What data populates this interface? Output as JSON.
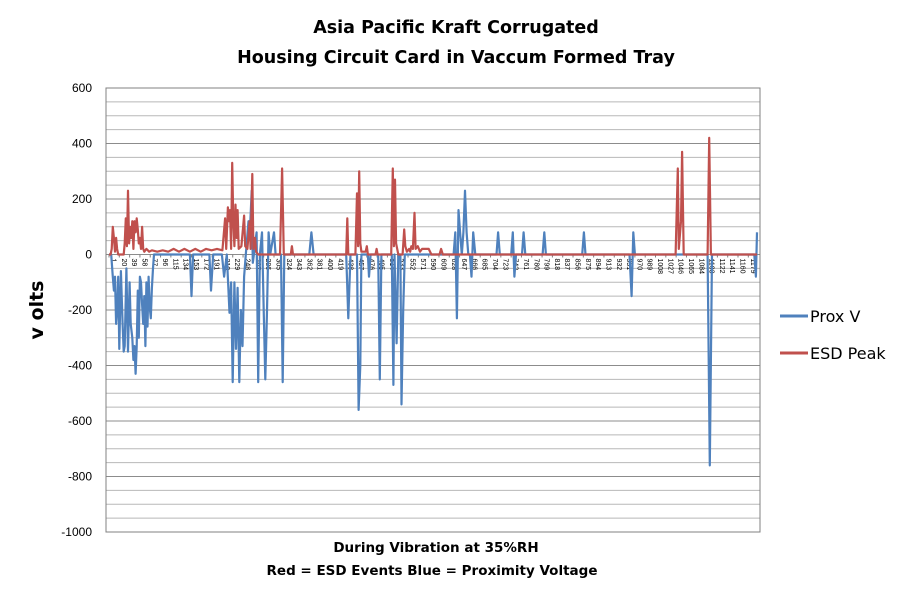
{
  "chart_data": {
    "type": "line",
    "title_lines": [
      "Asia Pacific Kraft Corrugated",
      "Housing Circuit Card in Vaccum Formed Tray"
    ],
    "ylabel": "v olts",
    "xlabel_lines": [
      "During Vibration at 35%RH",
      "Red = ESD Events   Blue = Proximity Voltage"
    ],
    "ylim": [
      -1000,
      600
    ],
    "yticks": [
      600,
      400,
      200,
      0,
      -200,
      -400,
      -600,
      -800,
      -1000
    ],
    "minor_grid_step": 50,
    "grid": true,
    "legend_position": "right",
    "x_count": 1195,
    "x_tick_labels": [
      "1",
      "20",
      "39",
      "58",
      "77",
      "96",
      "115",
      "134",
      "153",
      "172",
      "191",
      "210",
      "229",
      "248",
      "267",
      "286",
      "305",
      "324",
      "343",
      "362",
      "381",
      "400",
      "419",
      "438",
      "457",
      "476",
      "495",
      "514",
      "533",
      "552",
      "571",
      "590",
      "609",
      "628",
      "647",
      "666",
      "685",
      "704",
      "723",
      "742",
      "761",
      "780",
      "799",
      "818",
      "837",
      "856",
      "875",
      "894",
      "913",
      "932",
      "951",
      "970",
      "989",
      "1008",
      "1027",
      "1046",
      "1065",
      "1084",
      "1103",
      "1122",
      "1141",
      "1160",
      "1179"
    ],
    "series": [
      {
        "name": "Prox V",
        "color": "#4f81bd",
        "points": [
          [
            1,
            0
          ],
          [
            5,
            0
          ],
          [
            8,
            -80
          ],
          [
            10,
            -130
          ],
          [
            12,
            -80
          ],
          [
            14,
            -250
          ],
          [
            16,
            -200
          ],
          [
            18,
            -80
          ],
          [
            20,
            -340
          ],
          [
            23,
            -60
          ],
          [
            26,
            -250
          ],
          [
            28,
            -350
          ],
          [
            30,
            -330
          ],
          [
            33,
            -50
          ],
          [
            36,
            -350
          ],
          [
            39,
            -100
          ],
          [
            41,
            -250
          ],
          [
            44,
            -300
          ],
          [
            46,
            -380
          ],
          [
            48,
            -330
          ],
          [
            50,
            -430
          ],
          [
            52,
            -330
          ],
          [
            54,
            -130
          ],
          [
            56,
            -300
          ],
          [
            58,
            -80
          ],
          [
            60,
            -100
          ],
          [
            62,
            -180
          ],
          [
            64,
            -250
          ],
          [
            66,
            -150
          ],
          [
            68,
            -330
          ],
          [
            70,
            -100
          ],
          [
            72,
            -260
          ],
          [
            74,
            -80
          ],
          [
            76,
            -190
          ],
          [
            78,
            -230
          ],
          [
            80,
            -120
          ],
          [
            82,
            -50
          ],
          [
            84,
            0
          ],
          [
            150,
            0
          ],
          [
            153,
            -150
          ],
          [
            156,
            0
          ],
          [
            186,
            0
          ],
          [
            189,
            -130
          ],
          [
            193,
            0
          ],
          [
            209,
            0
          ],
          [
            213,
            -80
          ],
          [
            218,
            0
          ],
          [
            223,
            -210
          ],
          [
            226,
            -100
          ],
          [
            229,
            -460
          ],
          [
            232,
            -100
          ],
          [
            235,
            -340
          ],
          [
            238,
            -120
          ],
          [
            241,
            -460
          ],
          [
            244,
            -200
          ],
          [
            247,
            -330
          ],
          [
            250,
            -80
          ],
          [
            253,
            0
          ],
          [
            258,
            120
          ],
          [
            260,
            60
          ],
          [
            264,
            230
          ],
          [
            266,
            -30
          ],
          [
            268,
            0
          ],
          [
            273,
            80
          ],
          [
            276,
            -460
          ],
          [
            279,
            0
          ],
          [
            283,
            80
          ],
          [
            286,
            -200
          ],
          [
            289,
            -450
          ],
          [
            292,
            -220
          ],
          [
            295,
            80
          ],
          [
            298,
            0
          ],
          [
            305,
            80
          ],
          [
            308,
            0
          ],
          [
            318,
            0
          ],
          [
            321,
            -460
          ],
          [
            324,
            0
          ],
          [
            370,
            0
          ],
          [
            374,
            80
          ],
          [
            378,
            0
          ],
          [
            438,
            0
          ],
          [
            442,
            -230
          ],
          [
            446,
            0
          ],
          [
            458,
            0
          ],
          [
            461,
            -560
          ],
          [
            464,
            -400
          ],
          [
            466,
            0
          ],
          [
            478,
            0
          ],
          [
            480,
            -80
          ],
          [
            483,
            0
          ],
          [
            497,
            0
          ],
          [
            500,
            -450
          ],
          [
            503,
            0
          ],
          [
            522,
            0
          ],
          [
            525,
            -470
          ],
          [
            527,
            0
          ],
          [
            531,
            -320
          ],
          [
            534,
            0
          ],
          [
            538,
            0
          ],
          [
            540,
            -540
          ],
          [
            543,
            -200
          ],
          [
            546,
            0
          ],
          [
            636,
            0
          ],
          [
            639,
            80
          ],
          [
            642,
            -230
          ],
          [
            645,
            160
          ],
          [
            648,
            80
          ],
          [
            651,
            0
          ],
          [
            654,
            80
          ],
          [
            657,
            230
          ],
          [
            660,
            80
          ],
          [
            663,
            0
          ],
          [
            666,
            0
          ],
          [
            669,
            -80
          ],
          [
            672,
            80
          ],
          [
            676,
            0
          ],
          [
            715,
            0
          ],
          [
            718,
            80
          ],
          [
            721,
            0
          ],
          [
            742,
            0
          ],
          [
            745,
            80
          ],
          [
            748,
            -80
          ],
          [
            751,
            0
          ],
          [
            762,
            0
          ],
          [
            765,
            80
          ],
          [
            768,
            0
          ],
          [
            800,
            0
          ],
          [
            803,
            80
          ],
          [
            806,
            0
          ],
          [
            873,
            0
          ],
          [
            876,
            80
          ],
          [
            879,
            0
          ],
          [
            960,
            0
          ],
          [
            964,
            -150
          ],
          [
            967,
            80
          ],
          [
            970,
            0
          ],
          [
            1104,
            0
          ],
          [
            1108,
            -760
          ],
          [
            1112,
            0
          ],
          [
            1190,
            0
          ],
          [
            1193,
            -80
          ],
          [
            1195,
            80
          ]
        ]
      },
      {
        "name": "ESD Peak",
        "color": "#c0504d",
        "points": [
          [
            1,
            0
          ],
          [
            4,
            0
          ],
          [
            6,
            20
          ],
          [
            8,
            100
          ],
          [
            10,
            60
          ],
          [
            12,
            10
          ],
          [
            14,
            60
          ],
          [
            16,
            20
          ],
          [
            18,
            0
          ],
          [
            28,
            0
          ],
          [
            30,
            40
          ],
          [
            32,
            130
          ],
          [
            34,
            30
          ],
          [
            36,
            230
          ],
          [
            38,
            40
          ],
          [
            40,
            100
          ],
          [
            42,
            60
          ],
          [
            44,
            120
          ],
          [
            46,
            20
          ],
          [
            48,
            120
          ],
          [
            50,
            80
          ],
          [
            52,
            130
          ],
          [
            54,
            90
          ],
          [
            56,
            40
          ],
          [
            58,
            60
          ],
          [
            60,
            20
          ],
          [
            62,
            100
          ],
          [
            64,
            20
          ],
          [
            66,
            10
          ],
          [
            70,
            20
          ],
          [
            75,
            10
          ],
          [
            80,
            15
          ],
          [
            90,
            10
          ],
          [
            100,
            15
          ],
          [
            110,
            10
          ],
          [
            120,
            20
          ],
          [
            130,
            10
          ],
          [
            140,
            20
          ],
          [
            150,
            10
          ],
          [
            160,
            20
          ],
          [
            170,
            10
          ],
          [
            180,
            20
          ],
          [
            190,
            15
          ],
          [
            200,
            20
          ],
          [
            210,
            15
          ],
          [
            215,
            130
          ],
          [
            217,
            20
          ],
          [
            220,
            170
          ],
          [
            222,
            120
          ],
          [
            224,
            160
          ],
          [
            226,
            20
          ],
          [
            228,
            330
          ],
          [
            230,
            120
          ],
          [
            232,
            30
          ],
          [
            234,
            180
          ],
          [
            236,
            60
          ],
          [
            238,
            160
          ],
          [
            240,
            20
          ],
          [
            245,
            30
          ],
          [
            250,
            140
          ],
          [
            252,
            30
          ],
          [
            256,
            20
          ],
          [
            260,
            120
          ],
          [
            262,
            20
          ],
          [
            265,
            290
          ],
          [
            267,
            20
          ],
          [
            270,
            60
          ],
          [
            272,
            10
          ],
          [
            276,
            0
          ],
          [
            285,
            0
          ],
          [
            290,
            0
          ],
          [
            316,
            0
          ],
          [
            320,
            310
          ],
          [
            323,
            0
          ],
          [
            336,
            0
          ],
          [
            338,
            30
          ],
          [
            340,
            0
          ],
          [
            438,
            0
          ],
          [
            440,
            130
          ],
          [
            442,
            0
          ],
          [
            455,
            0
          ],
          [
            458,
            220
          ],
          [
            460,
            30
          ],
          [
            462,
            300
          ],
          [
            464,
            40
          ],
          [
            466,
            10
          ],
          [
            474,
            10
          ],
          [
            476,
            30
          ],
          [
            478,
            0
          ],
          [
            492,
            0
          ],
          [
            494,
            20
          ],
          [
            496,
            0
          ],
          [
            521,
            0
          ],
          [
            524,
            310
          ],
          [
            526,
            30
          ],
          [
            528,
            270
          ],
          [
            530,
            40
          ],
          [
            532,
            20
          ],
          [
            534,
            0
          ],
          [
            542,
            0
          ],
          [
            545,
            90
          ],
          [
            547,
            30
          ],
          [
            550,
            10
          ],
          [
            554,
            20
          ],
          [
            556,
            10
          ],
          [
            558,
            30
          ],
          [
            561,
            20
          ],
          [
            564,
            150
          ],
          [
            566,
            20
          ],
          [
            570,
            30
          ],
          [
            574,
            10
          ],
          [
            578,
            20
          ],
          [
            590,
            20
          ],
          [
            595,
            0
          ],
          [
            610,
            0
          ],
          [
            613,
            20
          ],
          [
            616,
            0
          ],
          [
            640,
            0
          ],
          [
            650,
            0
          ],
          [
            1045,
            0
          ],
          [
            1049,
            310
          ],
          [
            1051,
            20
          ],
          [
            1055,
            120
          ],
          [
            1057,
            370
          ],
          [
            1060,
            0
          ],
          [
            1104,
            0
          ],
          [
            1107,
            420
          ],
          [
            1110,
            0
          ],
          [
            1195,
            0
          ]
        ]
      }
    ]
  }
}
